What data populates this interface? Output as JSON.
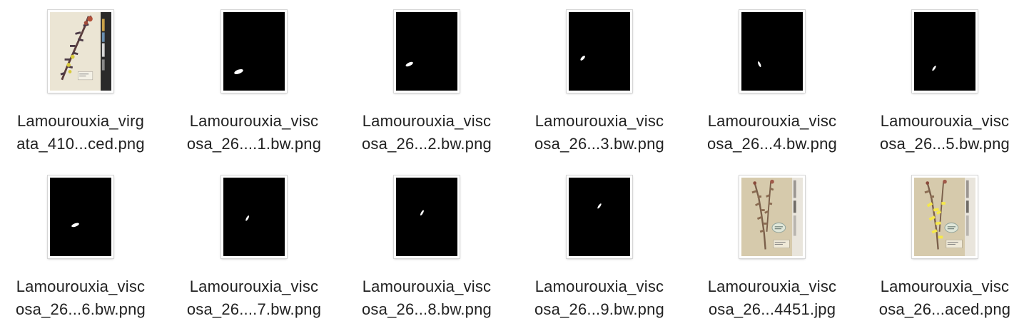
{
  "files": [
    {
      "line1": "Lamourouxia_virg",
      "line2": "ata_410...ced.png",
      "thumb": "herbarium-sheet-purple"
    },
    {
      "line1": "Lamourouxia_visc",
      "line2": "osa_26....1.bw.png",
      "thumb": "mask"
    },
    {
      "line1": "Lamourouxia_visc",
      "line2": "osa_26...2.bw.png",
      "thumb": "mask"
    },
    {
      "line1": "Lamourouxia_visc",
      "line2": "osa_26...3.bw.png",
      "thumb": "mask"
    },
    {
      "line1": "Lamourouxia_visc",
      "line2": "osa_26...4.bw.png",
      "thumb": "mask"
    },
    {
      "line1": "Lamourouxia_visc",
      "line2": "osa_26...5.bw.png",
      "thumb": "mask"
    },
    {
      "line1": "Lamourouxia_visc",
      "line2": "osa_26...6.bw.png",
      "thumb": "mask"
    },
    {
      "line1": "Lamourouxia_visc",
      "line2": "osa_26....7.bw.png",
      "thumb": "mask"
    },
    {
      "line1": "Lamourouxia_visc",
      "line2": "osa_26...8.bw.png",
      "thumb": "mask"
    },
    {
      "line1": "Lamourouxia_visc",
      "line2": "osa_26...9.bw.png",
      "thumb": "mask"
    },
    {
      "line1": "Lamourouxia_visc",
      "line2": "osa_26...4451.jpg",
      "thumb": "herbarium-sheet"
    },
    {
      "line1": "Lamourouxia_visc",
      "line2": "osa_26...aced.png",
      "thumb": "herbarium-sheet-yellow"
    }
  ]
}
